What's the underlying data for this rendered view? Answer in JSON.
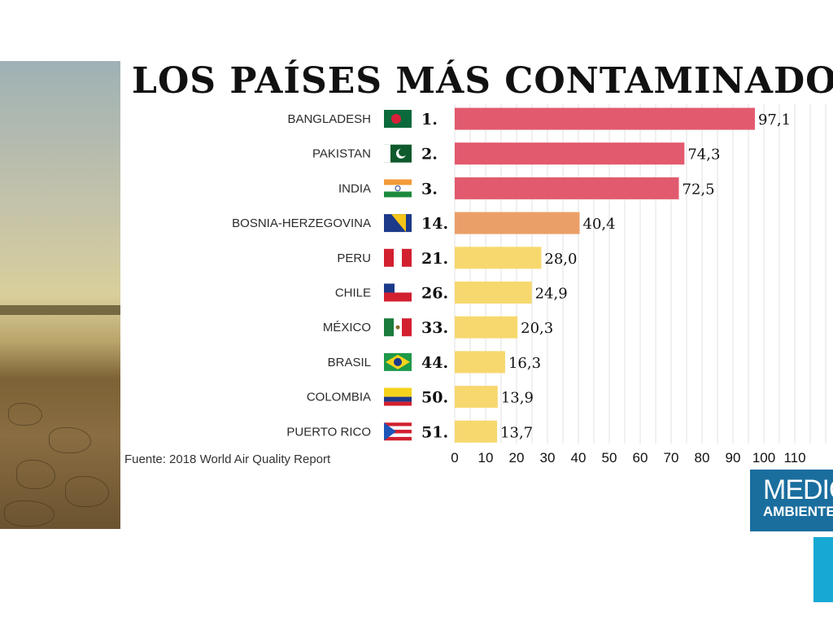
{
  "title": "LOS PAÍSES MÁS CONTAMINADOS",
  "source": "Fuente: 2018 World Air Quality Report",
  "logo": {
    "line1": "MEDIO",
    "line2": "AMBIENTE"
  },
  "colors": {
    "red": "#e25a6e",
    "orange": "#eb9f68",
    "yellow": "#f7d86e"
  },
  "chart_data": {
    "type": "bar",
    "orientation": "horizontal",
    "title": "LOS PAÍSES MÁS CONTAMINADOS",
    "categories": [
      "BANGLADESH",
      "PAKISTAN",
      "INDIA",
      "BOSNIA-HERZEGOVINA",
      "PERU",
      "CHILE",
      "MÉXICO",
      "BRASIL",
      "COLOMBIA",
      "PUERTO RICO"
    ],
    "ranks": [
      "1.",
      "2.",
      "3.",
      "14.",
      "21.",
      "26.",
      "33.",
      "44.",
      "50.",
      "51."
    ],
    "values": [
      97.1,
      74.3,
      72.5,
      40.4,
      28.0,
      24.9,
      20.3,
      16.3,
      13.9,
      13.7
    ],
    "value_labels": [
      "97,1",
      "74,3",
      "72,5",
      "40,4",
      "28,0",
      "24,9",
      "20,3",
      "16,3",
      "13,9",
      "13,7"
    ],
    "bar_colors": [
      "red",
      "red",
      "red",
      "orange",
      "yellow",
      "yellow",
      "yellow",
      "yellow",
      "yellow",
      "yellow"
    ],
    "flags": [
      "bangladesh",
      "pakistan",
      "india",
      "bosnia",
      "peru",
      "chile",
      "mexico",
      "brazil",
      "colombia",
      "puerto-rico"
    ],
    "xticks": [
      0,
      10,
      20,
      30,
      40,
      50,
      60,
      70,
      80,
      90,
      100,
      110
    ],
    "xlim": [
      0,
      120
    ],
    "grid": true
  }
}
